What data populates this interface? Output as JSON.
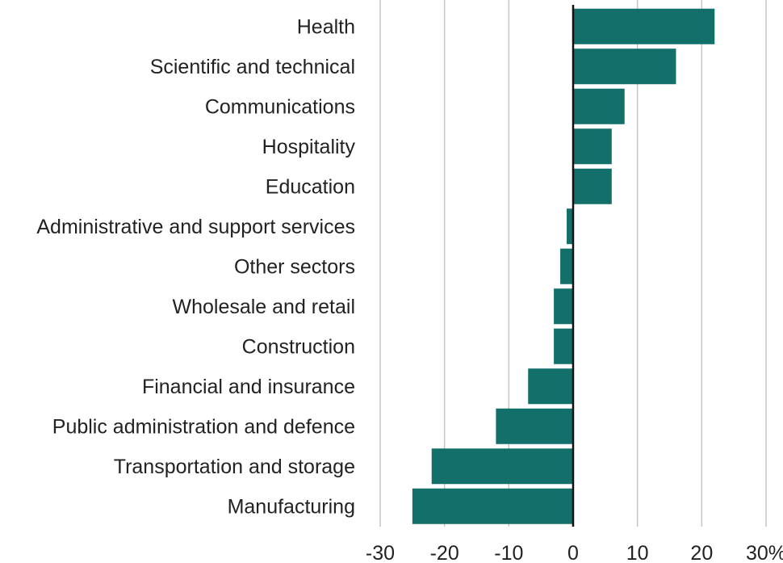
{
  "chart_data": {
    "type": "bar",
    "orientation": "horizontal",
    "categories": [
      "Health",
      "Scientific and technical",
      "Communications",
      "Hospitality",
      "Education",
      "Administrative and support services",
      "Other sectors",
      "Wholesale and retail",
      "Construction",
      "Financial and insurance",
      "Public administration and defence",
      "Transportation and storage",
      "Manufacturing"
    ],
    "values": [
      22,
      16,
      8,
      6,
      6,
      -1,
      -2,
      -3,
      -3,
      -7,
      -12,
      -22,
      -25
    ],
    "xlim": [
      -30,
      30
    ],
    "x_ticks": [
      -30,
      -20,
      -10,
      0,
      10,
      20,
      30
    ],
    "x_tick_labels": [
      "-30",
      "-20",
      "-10",
      "0",
      "10",
      "20",
      "30%"
    ],
    "grid": true,
    "bar_color": "#136f6a",
    "title": "",
    "xlabel": "",
    "ylabel": ""
  }
}
